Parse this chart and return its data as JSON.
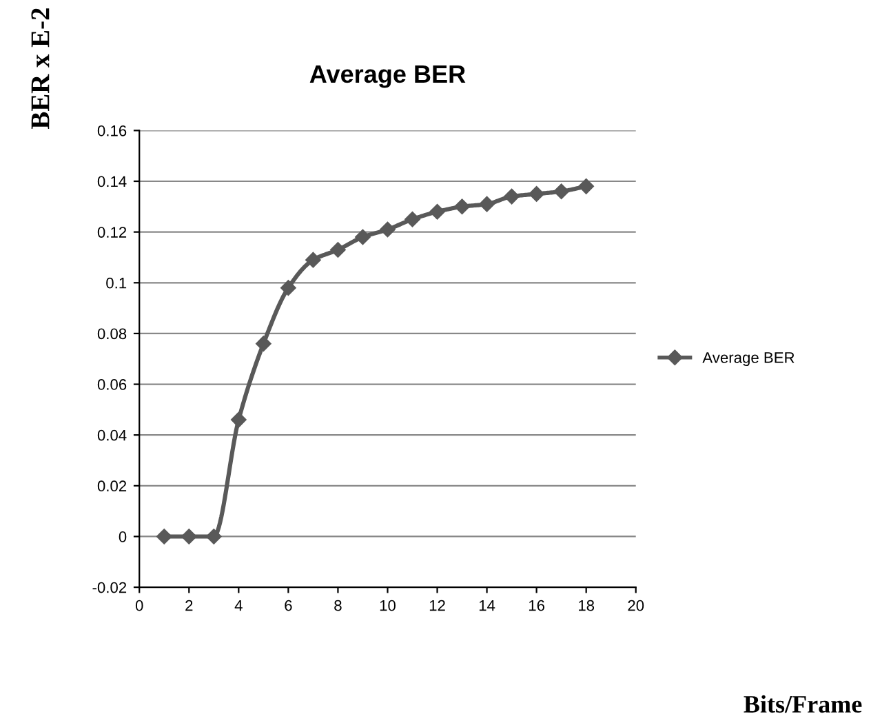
{
  "chart_data": {
    "type": "line",
    "title": "Average BER",
    "annotations": [
      "Bits/Frame"
    ],
    "ylabel": "BER x E-2",
    "x": [
      1,
      2,
      3,
      4,
      5,
      6,
      7,
      8,
      9,
      10,
      11,
      12,
      13,
      14,
      15,
      16,
      17,
      18
    ],
    "series": [
      {
        "name": "Average BER",
        "color": "#595959",
        "values": [
          0,
          0,
          0,
          0.046,
          0.076,
          0.098,
          0.109,
          0.113,
          0.118,
          0.121,
          0.125,
          0.128,
          0.13,
          0.131,
          0.134,
          0.135,
          0.136,
          0.138
        ]
      }
    ],
    "xlim": [
      0,
      20
    ],
    "xticks": [
      0,
      2,
      4,
      6,
      8,
      10,
      12,
      14,
      16,
      18,
      20
    ],
    "ylim": [
      -0.02,
      0.16
    ],
    "yticks": [
      -0.02,
      0,
      0.02,
      0.04,
      0.06,
      0.08,
      0.1,
      0.12,
      0.14,
      0.16
    ],
    "grid": "y",
    "legend": "right",
    "marker": "diamond",
    "line_style": "solid"
  }
}
